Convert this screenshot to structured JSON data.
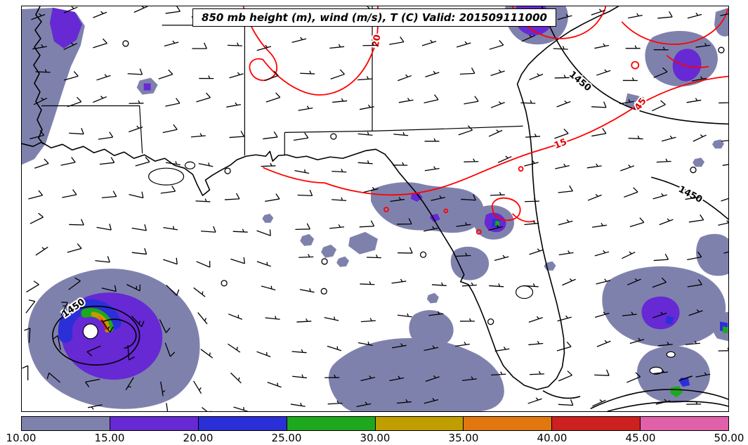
{
  "title": "850 mb height (m), wind (m/s), T (C) Valid: 201509111000",
  "map_labels": {
    "temp_20": "20",
    "temp_15": "15",
    "temp_45": "45",
    "height_ne": "1450",
    "height_e": "1450",
    "height_low": "1450"
  },
  "colorbar": {
    "ticks": [
      "10.00",
      "15.00",
      "20.00",
      "25.00",
      "30.00",
      "35.00",
      "40.00",
      "45.00",
      "50.00"
    ],
    "colors": [
      "#7f81ad",
      "#6629d4",
      "#2b2fd8",
      "#1ea81e",
      "#c19e00",
      "#e2770f",
      "#cd2020",
      "#e060aa"
    ]
  },
  "chart_data": {
    "type": "heatmap",
    "title": "850 mb height (m), wind (m/s), T (C) Valid: 201509111000",
    "valid_time": "201509111000",
    "fields": [
      "850 mb height (m)",
      "wind (m/s)",
      "T (C)"
    ],
    "colorbar": {
      "tick_values": [
        10,
        15,
        20,
        25,
        30,
        35,
        40,
        45,
        50
      ],
      "tick_labels": [
        "10.00",
        "15.00",
        "20.00",
        "25.00",
        "30.00",
        "35.00",
        "40.00",
        "45.00",
        "50.00"
      ],
      "segment_colors": [
        "#7f81ad",
        "#6629d4",
        "#2b2fd8",
        "#1ea81e",
        "#c19e00",
        "#e2770f",
        "#cd2020",
        "#e060aa"
      ]
    },
    "contour_labels": {
      "red_temperature": [
        20,
        15,
        45
      ],
      "black_height": [
        1450,
        1450,
        1450
      ]
    },
    "features": [
      "tropical cyclone with clear eye in lower-left (Gulf of Mexico) with concentric wind maxima",
      "coastlines of Gulf Coast, Florida peninsula and Cuba with state borders",
      "wind barbs on regular grid across domain",
      "red temperature contours and black geopotential height contours"
    ],
    "legend_position": "bottom horizontal colorbar"
  }
}
